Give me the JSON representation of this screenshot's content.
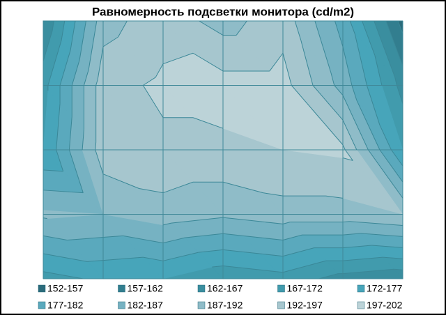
{
  "chart_data": {
    "type": "contour",
    "title": "Равномерность  подсветки монитора (cd/m2)",
    "z": [
      [
        162,
        190,
        195,
        190,
        195,
        180,
        155
      ],
      [
        170,
        195,
        198,
        199,
        199,
        185,
        165
      ],
      [
        172,
        195,
        196,
        196,
        197,
        198,
        172
      ],
      [
        188,
        187,
        190,
        188,
        190,
        190,
        192
      ],
      [
        170,
        173,
        172,
        168,
        170,
        165,
        163
      ]
    ],
    "legend": [
      {
        "label": "152-157",
        "from": 152,
        "to": 157,
        "color": "#2b6b7b"
      },
      {
        "label": "157-162",
        "from": 157,
        "to": 162,
        "color": "#327e8f"
      },
      {
        "label": "162-167",
        "from": 162,
        "to": 167,
        "color": "#3a8e9f"
      },
      {
        "label": "167-172",
        "from": 167,
        "to": 172,
        "color": "#419bad"
      },
      {
        "label": "172-177",
        "from": 172,
        "to": 177,
        "color": "#47a5ba"
      },
      {
        "label": "177-182",
        "from": 177,
        "to": 182,
        "color": "#5aa9bd"
      },
      {
        "label": "182-187",
        "from": 182,
        "to": 187,
        "color": "#76b2c2"
      },
      {
        "label": "187-192",
        "from": 187,
        "to": 192,
        "color": "#8fbcc8"
      },
      {
        "label": "192-197",
        "from": 192,
        "to": 197,
        "color": "#a6c6ce"
      },
      {
        "label": "197-202",
        "from": 197,
        "to": 202,
        "color": "#bcd3d8"
      }
    ]
  }
}
